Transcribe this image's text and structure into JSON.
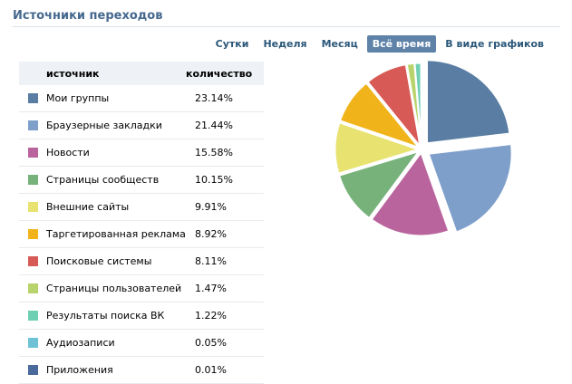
{
  "header": {
    "title": "Источники переходов"
  },
  "periods": [
    {
      "label": "Сутки",
      "active": false
    },
    {
      "label": "Неделя",
      "active": false
    },
    {
      "label": "Месяц",
      "active": false
    },
    {
      "label": "Всё время",
      "active": true
    },
    {
      "label": "В виде графиков",
      "active": false
    }
  ],
  "table": {
    "col_source": "источник",
    "col_count": "количество"
  },
  "chart_data": {
    "type": "pie",
    "categories": [
      "Мои группы",
      "Браузерные закладки",
      "Новости",
      "Страницы сообществ",
      "Внешние сайты",
      "Таргетированная реклама",
      "Поисковые системы",
      "Страницы пользователей",
      "Результаты поиска ВК",
      "Аудиозаписи",
      "Приложения"
    ],
    "values": [
      23.14,
      21.44,
      15.58,
      10.15,
      9.91,
      8.92,
      8.11,
      1.47,
      1.22,
      0.05,
      0.01
    ],
    "labels": [
      "23.14%",
      "21.44%",
      "15.58%",
      "10.15%",
      "9.91%",
      "8.92%",
      "8.11%",
      "1.47%",
      "1.22%",
      "0.05%",
      "0.01%"
    ],
    "colors": [
      "#597da3",
      "#7f9fcb",
      "#b9649d",
      "#76b27a",
      "#e8e270",
      "#f0b41a",
      "#d85a56",
      "#b8d36b",
      "#6fcfb3",
      "#6dc3d5",
      "#4a6a9b"
    ],
    "exploded": [
      true,
      true,
      false,
      false,
      false,
      false,
      false,
      false,
      false,
      false,
      false
    ],
    "legend": "left"
  }
}
